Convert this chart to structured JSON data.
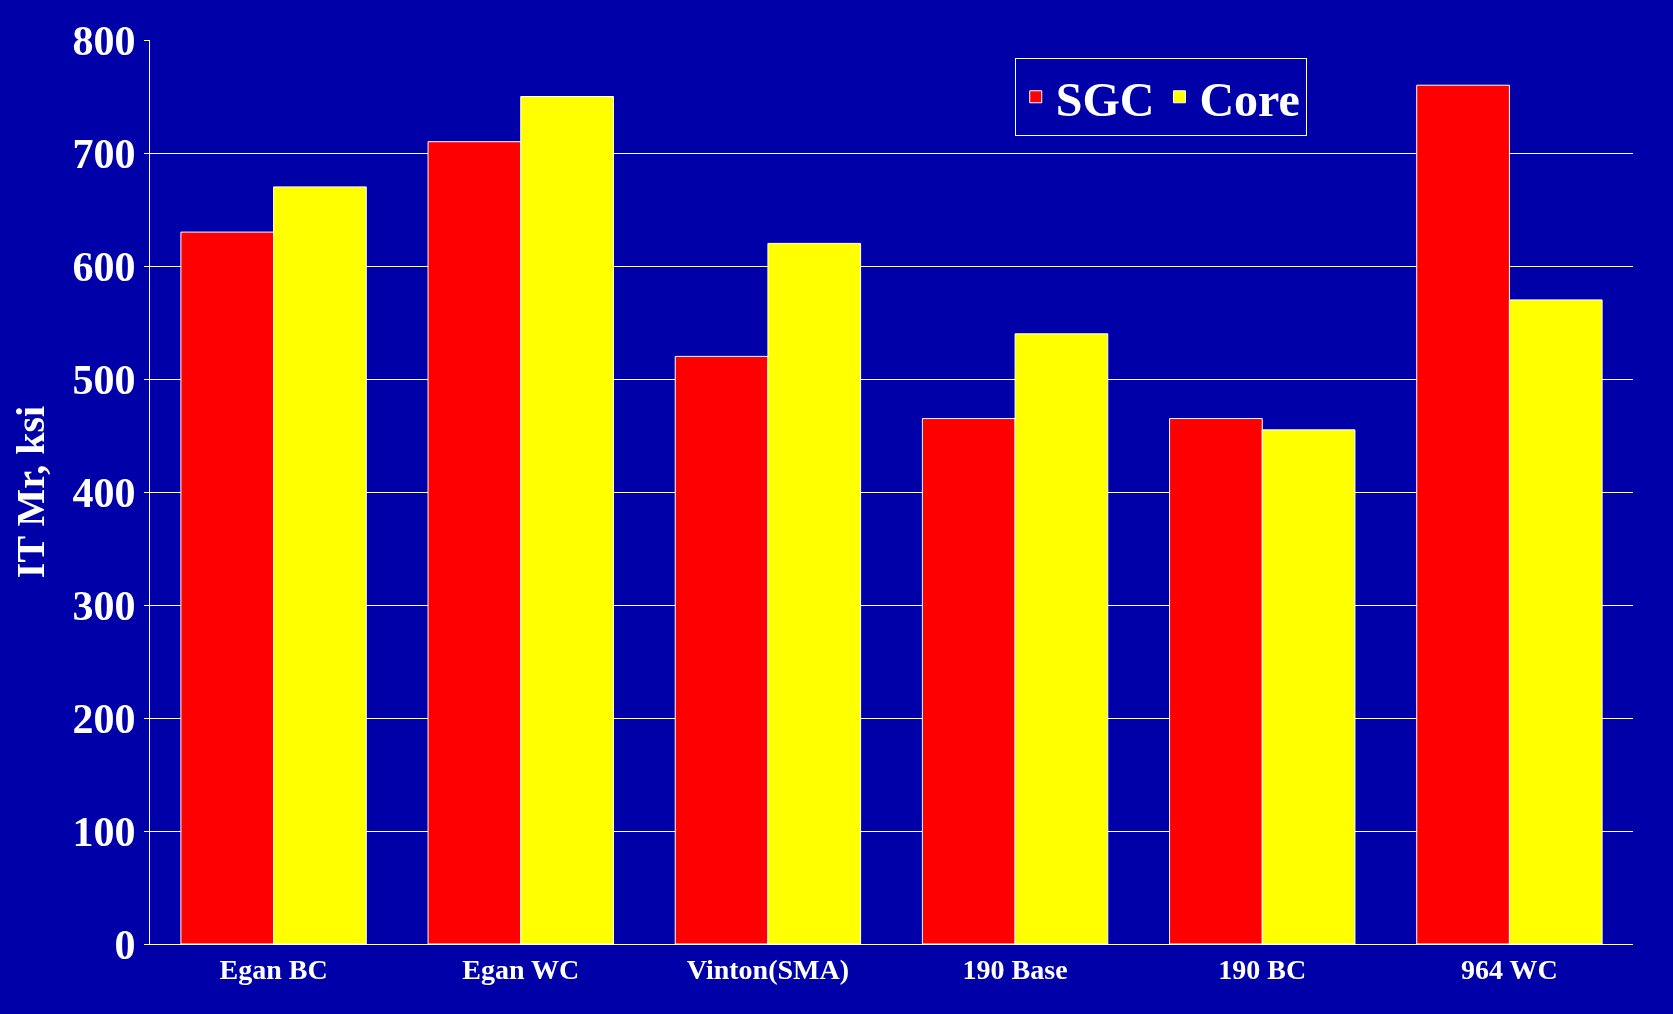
{
  "chart_data": {
    "type": "bar",
    "ylabel": "IT Mr, ksi",
    "categories": [
      "Egan BC",
      "Egan WC",
      "Vinton(SMA)",
      "190 Base",
      "190 BC",
      "964 WC"
    ],
    "series": [
      {
        "name": "SGC",
        "color": "#ff0000",
        "values": [
          630,
          710,
          520,
          465,
          465,
          760
        ]
      },
      {
        "name": "Core",
        "color": "#ffff00",
        "values": [
          670,
          750,
          620,
          540,
          455,
          570
        ]
      }
    ],
    "ylim": [
      0,
      800
    ],
    "yticks": [
      0,
      100,
      200,
      300,
      400,
      500,
      600,
      700,
      800
    ],
    "grid": "y",
    "legend": "top right"
  }
}
